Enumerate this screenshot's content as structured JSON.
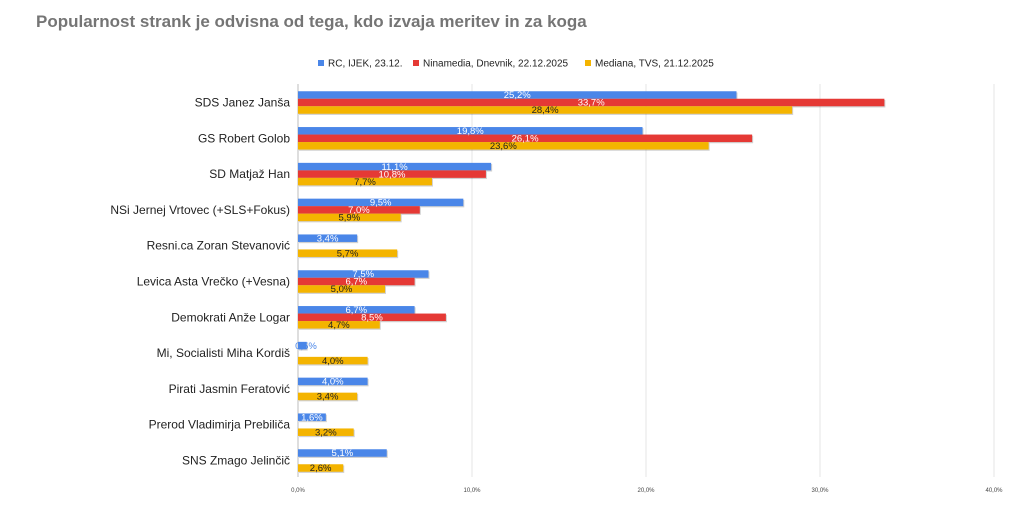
{
  "chart_data": {
    "type": "bar",
    "orientation": "horizontal",
    "title": "Popularnost strank je odvisna od tega, kdo izvaja meritev in za koga",
    "categories": [
      "SDS Janez Janša",
      "GS Robert Golob",
      "SD Matjaž Han",
      "NSi Jernej Vrtovec (+SLS+Fokus)",
      "Resni.ca Zoran Stevanović",
      "Levica Asta Vrečko (+Vesna)",
      "Demokrati Anže Logar",
      "Mi, Socialisti Miha Kordiš",
      "Pirati Jasmin Feratović",
      "Prerod Vladimirja Prebiliča",
      "SNS Zmago Jelinčič"
    ],
    "series": [
      {
        "name": "RC, IJEK, 23.12.",
        "color": "#4a86e8",
        "label_color": "#ffffff",
        "values": [
          25.2,
          19.8,
          11.1,
          9.5,
          3.4,
          7.5,
          6.7,
          0.5,
          4.0,
          1.6,
          5.1
        ],
        "labels": [
          "25,2%",
          "19,8%",
          "11,1%",
          "9,5%",
          "3,4%",
          "7,5%",
          "6,7%",
          "0,5%",
          "4,0%",
          "1,6%",
          "5,1%"
        ]
      },
      {
        "name": "Ninamedia, Dnevnik, 22.12.2025",
        "color": "#e53935",
        "label_color": "#ffffff",
        "values": [
          33.7,
          26.1,
          10.8,
          7.0,
          null,
          6.7,
          8.5,
          null,
          null,
          null,
          null
        ],
        "labels": [
          "33,7%",
          "26,1%",
          "10,8%",
          "7,0%",
          "",
          "6,7%",
          "8,5%",
          "",
          "",
          "",
          ""
        ]
      },
      {
        "name": "Mediana, TVS, 21.12.2025",
        "color": "#f4b400",
        "label_color": "#222222",
        "values": [
          28.4,
          23.6,
          7.7,
          5.9,
          5.7,
          5.0,
          4.7,
          4.0,
          3.4,
          3.2,
          2.6
        ],
        "labels": [
          "28,4%",
          "23,6%",
          "7,7%",
          "5,9%",
          "5,7%",
          "5,0%",
          "4,7%",
          "4,0%",
          "3,4%",
          "3,2%",
          "2,6%"
        ]
      }
    ],
    "xlim": [
      0,
      40
    ],
    "x_ticks": [
      "0,0%",
      "10,0%",
      "20,0%",
      "30,0%",
      "40,0%"
    ],
    "grid": true,
    "legend_position": "top"
  }
}
